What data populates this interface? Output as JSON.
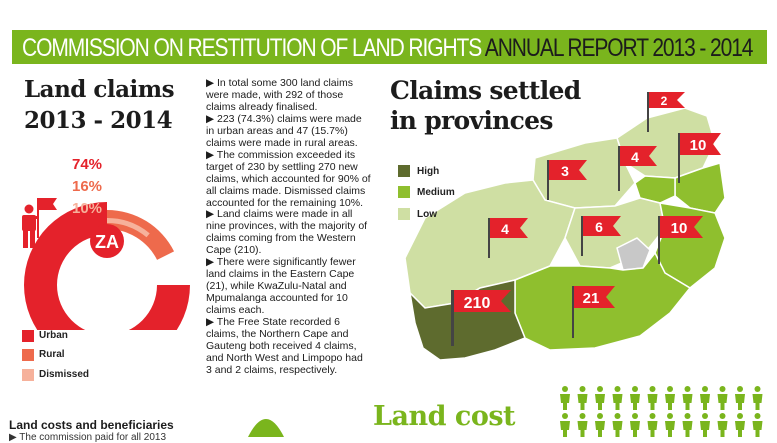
{
  "banner": {
    "title_part1": "COMMISSION ON RESTITUTION OF LAND RIGHTS",
    "title_part2": "ANNUAL REPORT 2013 - 2014"
  },
  "left": {
    "heading_line1": "Land claims",
    "heading_line2": "2013 - 2014",
    "badge": "ZA",
    "pct_urban": "74%",
    "pct_rural": "16%",
    "pct_dismissed": "10%",
    "legend": [
      {
        "label": "Urban",
        "color": "#e4222b"
      },
      {
        "label": "Rural",
        "color": "#ee6a4c"
      },
      {
        "label": "Dismissed",
        "color": "#f6b19b"
      }
    ],
    "costs_title": "Land costs and beneficiaries",
    "costs_sub": "▶ The commission paid for all 2013"
  },
  "chart_data": {
    "type": "pie",
    "categories": [
      "Urban",
      "Rural",
      "Dismissed"
    ],
    "values": [
      74,
      16,
      10
    ],
    "colors": [
      "#e4222b",
      "#ee6a4c",
      "#f6b19b"
    ],
    "title": "Land claims 2013 - 2014"
  },
  "text": {
    "paragraphs": [
      "▶ In total some 300 land claims were made, with 292 of those claims already finalised.",
      "▶ 223 (74.3%) claims were made in urban areas and 47 (15.7%) claims were made in rural areas.",
      "▶ The commission exceeded its target of 230 by settling 270 new claims, which accounted for 90% of all claims made. Dismissed claims accounted for the remaining 10%.",
      "▶ Land claims were made in all nine provinces, with the majority of claims coming from the Western Cape (210).",
      "▶ There were significantly fewer land claims in the Eastern Cape (21), while KwaZulu-Natal and Mpumalanga accounted for 10 claims each.",
      "▶ The Free State recorded 6 claims, the Northern Cape and Gauteng both received 4 claims, and North West and Limpopo had 3 and 2 claims, respectively."
    ]
  },
  "right": {
    "heading_line1": "Claims settled",
    "heading_line2": "in provinces",
    "legend": [
      {
        "label": "High",
        "color": "#5e6b2e"
      },
      {
        "label": "Medium",
        "color": "#8fbf2e"
      },
      {
        "label": "Low",
        "color": "#cfdfa3"
      }
    ],
    "flags": {
      "limpopo": "2",
      "mpumalanga": "10",
      "north_west": "3",
      "gauteng": "4",
      "northern_cape": "4",
      "free_state": "6",
      "kwazulu_natal": "10",
      "western_cape": "210",
      "eastern_cape": "21"
    },
    "land_cost": "Land cost"
  },
  "colors": {
    "brand_green": "#7ab51d",
    "flag_red": "#e4222b"
  }
}
